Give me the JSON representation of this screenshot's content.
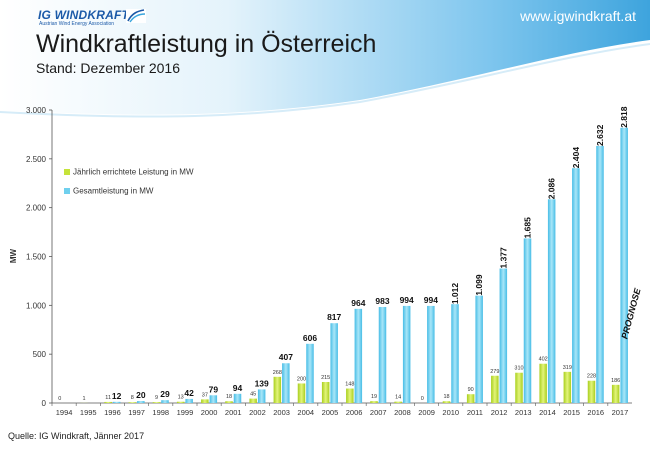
{
  "header": {
    "logo_main": "IG WINDKRAFT",
    "logo_sub": "Austrian Wind Energy Association",
    "url": "www.igwindkraft.at",
    "title": "Windkraftleistung in Österreich",
    "subtitle": "Stand: Dezember 2016"
  },
  "footer": {
    "source": "Quelle: IG Windkraft, Jänner 2017"
  },
  "colors": {
    "annual": "#c5e33a",
    "total": "#6fd0ee",
    "header_blue": "#3aa6dd"
  },
  "chart_data": {
    "type": "bar",
    "title": "Windkraftleistung in Österreich",
    "subtitle": "Stand: Dezember 2016",
    "xlabel": "",
    "ylabel": "MW",
    "ylim": [
      0,
      3000
    ],
    "yticks": [
      0,
      500,
      1000,
      1500,
      2000,
      2500,
      3000
    ],
    "ytick_labels": [
      "0",
      "500",
      "1.000",
      "1.500",
      "2.000",
      "2.500",
      "3.000"
    ],
    "grid": false,
    "legend": "upper-left",
    "categories": [
      "1994",
      "1995",
      "1996",
      "1997",
      "1998",
      "1999",
      "2000",
      "2001",
      "2002",
      "2003",
      "2004",
      "2005",
      "2006",
      "2007",
      "2008",
      "2009",
      "2010",
      "2011",
      "2012",
      "2013",
      "2014",
      "2015",
      "2016",
      "2017"
    ],
    "series": [
      {
        "name": "Jährlich errichtete Leistung in MW",
        "values": [
          0,
          1,
          11,
          8,
          9,
          13,
          37,
          18,
          45,
          268,
          200,
          215,
          148,
          19,
          14,
          0,
          18,
          90,
          279,
          310,
          402,
          319,
          228,
          186
        ],
        "labels": [
          "0",
          "1",
          "11",
          "8",
          "9",
          "13",
          "37",
          "18",
          "45",
          "268",
          "200",
          "215",
          "148",
          "19",
          "14",
          "0",
          "18",
          "90",
          "279",
          "310",
          "402",
          "319",
          "228",
          "186"
        ]
      },
      {
        "name": "Gesamtleistung in MW",
        "values": [
          0,
          0,
          12,
          20,
          29,
          42,
          79,
          94,
          139,
          407,
          606,
          817,
          964,
          983,
          994,
          994,
          1012,
          1099,
          1377,
          1685,
          2086,
          2404,
          2632,
          2818
        ],
        "labels": [
          "",
          "",
          "12",
          "20",
          "29",
          "42",
          "79",
          "94",
          "139",
          "407",
          "606",
          "817",
          "964",
          "983",
          "994",
          "994",
          "1.012",
          "1.099",
          "1.377",
          "1.685",
          "2.086",
          "2.404",
          "2.632",
          "2.818"
        ]
      }
    ],
    "annotation": "PROGNOSE"
  }
}
